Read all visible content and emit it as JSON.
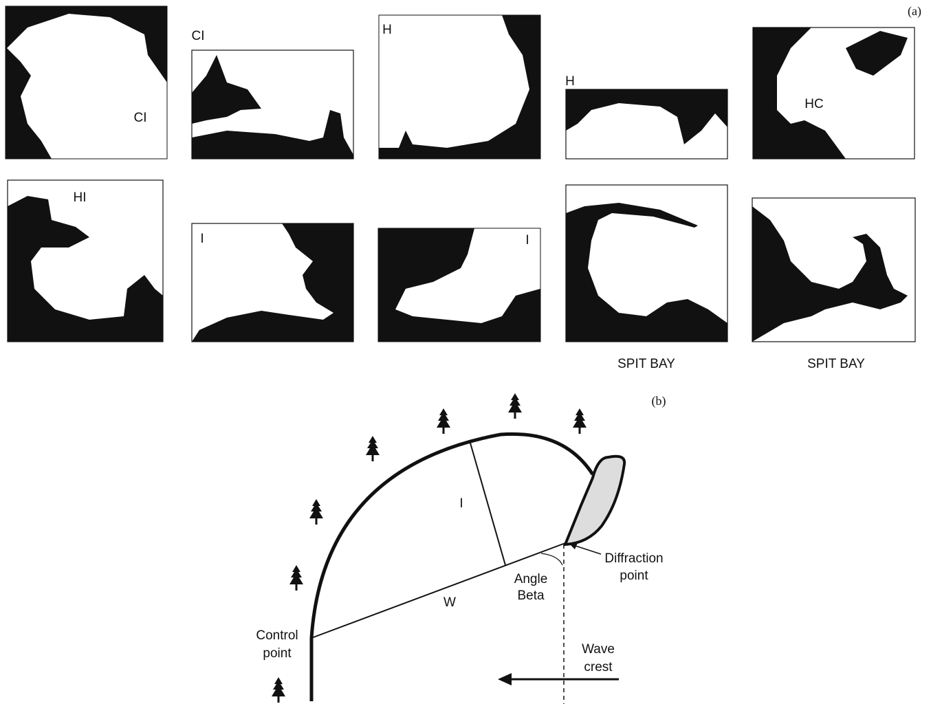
{
  "panel_a": {
    "label": "(a)",
    "maps": [
      {
        "label": "CI"
      },
      {
        "label": "CI"
      },
      {
        "label": "H"
      },
      {
        "label": "H"
      },
      {
        "label": "HC"
      },
      {
        "label": "HI"
      },
      {
        "label": "I"
      },
      {
        "label": "I"
      },
      {
        "label": "SPIT BAY"
      },
      {
        "label": "SPIT BAY"
      }
    ]
  },
  "panel_b": {
    "label": "(b)",
    "indentation": "I",
    "width": "W",
    "angle": [
      "Angle",
      "Beta"
    ],
    "diffraction": [
      "Diffraction",
      "point"
    ],
    "control": [
      "Control",
      "point"
    ],
    "wave": [
      "Wave",
      "crest"
    ]
  }
}
